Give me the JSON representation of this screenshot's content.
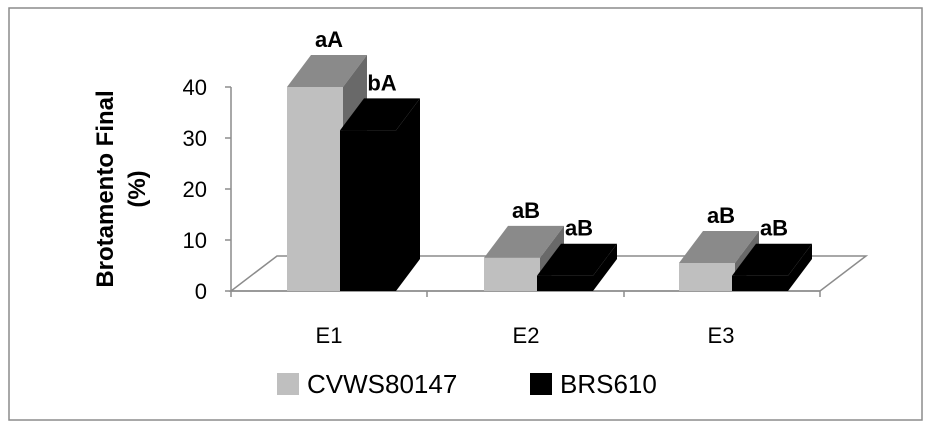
{
  "chart_data": {
    "type": "bar",
    "style": "3d-clustered-column",
    "title": "",
    "xlabel": "",
    "ylabel_lines": [
      "Brotamento Final",
      "(%)"
    ],
    "ylim": [
      0,
      40
    ],
    "yticks": [
      "0",
      "10",
      "20",
      "30",
      "40"
    ],
    "categories": [
      "E1",
      "E2",
      "E3"
    ],
    "series": [
      {
        "name": "CVWS80147",
        "color": "#bfbfbf",
        "values": [
          40,
          6.5,
          5.5
        ],
        "labels": [
          "aA",
          "aB",
          "aB"
        ]
      },
      {
        "name": "BRS610",
        "color": "#000000",
        "values": [
          31.5,
          3,
          3
        ],
        "labels": [
          "bA",
          "aB",
          "aB"
        ]
      }
    ],
    "legend_position": "bottom",
    "grid": false
  }
}
